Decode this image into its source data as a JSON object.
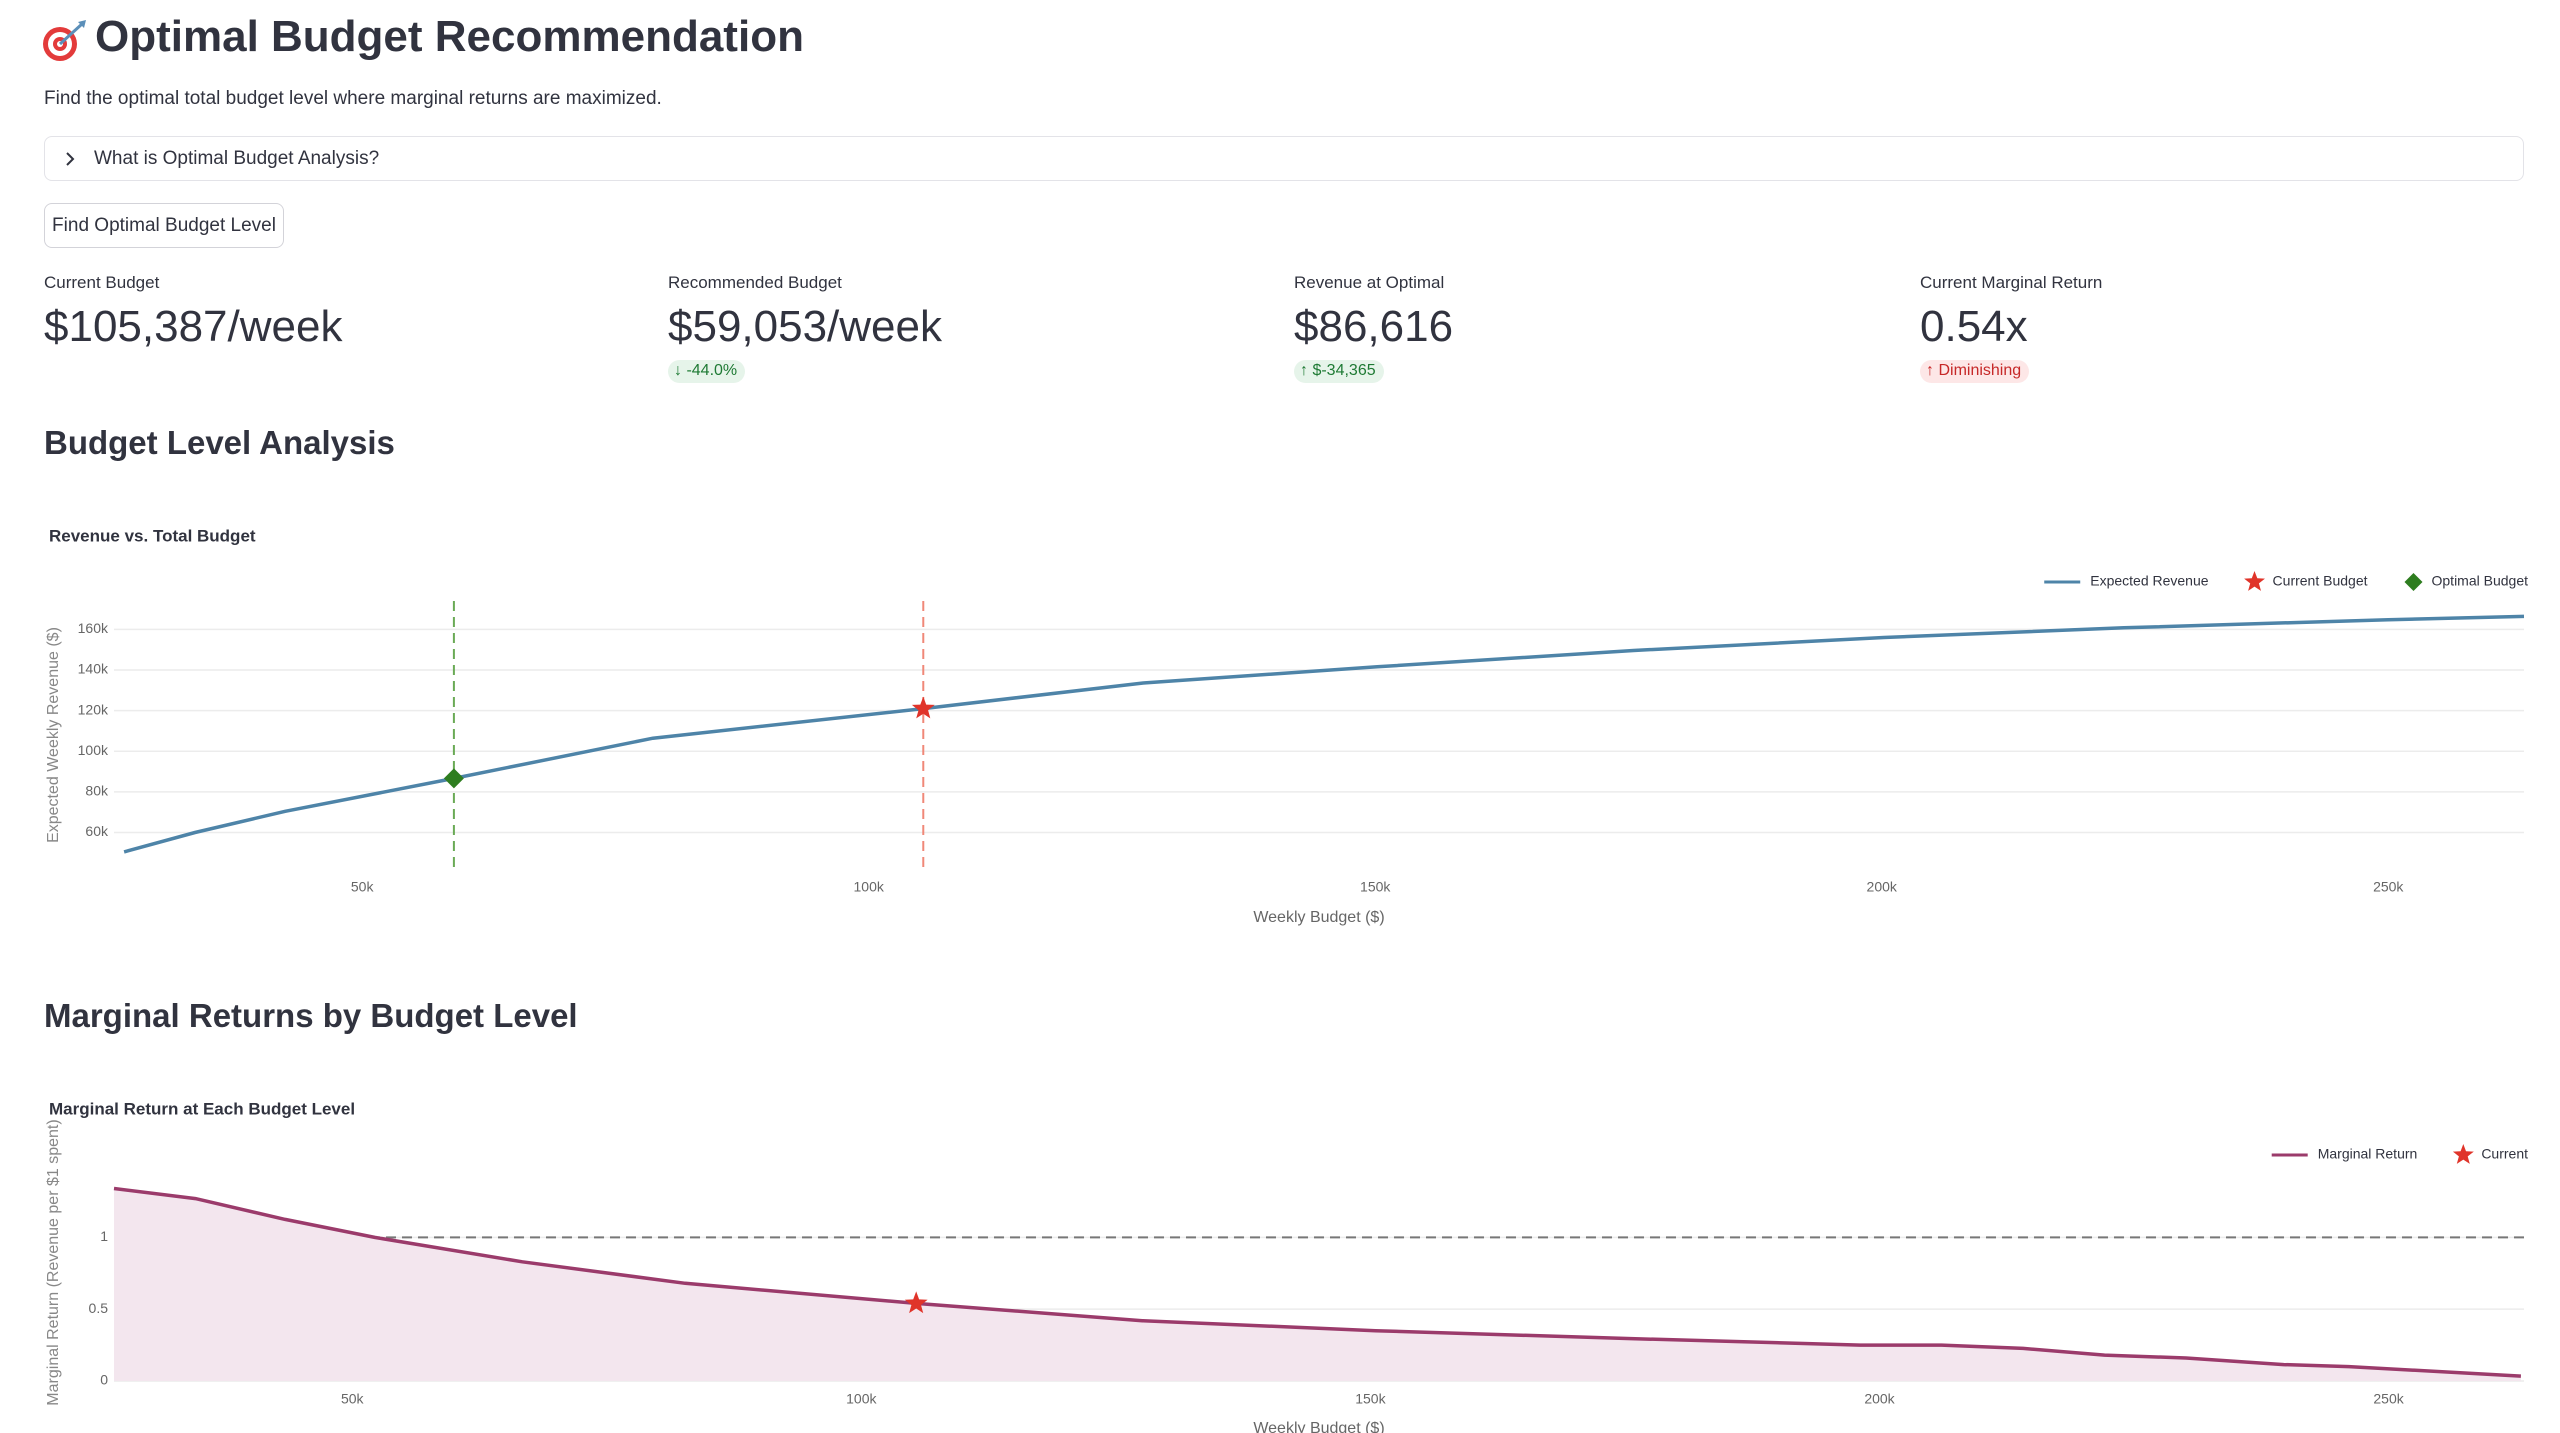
{
  "header": {
    "title": "Optimal Budget Recommendation",
    "subtitle": "Find the optimal total budget level where marginal returns are maximized."
  },
  "expander": {
    "label": "What is Optimal Budget Analysis?"
  },
  "button": {
    "label": "Find Optimal Budget Level"
  },
  "metrics": [
    {
      "label": "Current Budget",
      "value": "$105,387/week"
    },
    {
      "label": "Recommended Budget",
      "value": "$59,053/week",
      "delta": "-44.0%"
    },
    {
      "label": "Revenue at Optimal",
      "value": "$86,616",
      "delta": "$-34,365"
    },
    {
      "label": "Current Marginal Return",
      "value": "0.54x",
      "delta": "Diminishing"
    }
  ],
  "sections": [
    "Budget Level Analysis",
    "Marginal Returns by Budget Level"
  ],
  "chart_data": [
    {
      "type": "line",
      "title": "Revenue vs. Total Budget",
      "x_label": "Weekly Budget ($)",
      "y_label": "Expected Weekly Revenue ($)",
      "xlim": [
        25500,
        263400
      ],
      "ylim": [
        42000,
        174000
      ],
      "xticks": [
        {
          "value": 50000,
          "label": "50k"
        },
        {
          "value": 100000,
          "label": "100k"
        },
        {
          "value": 150000,
          "label": "150k"
        },
        {
          "value": 200000,
          "label": "200k"
        },
        {
          "value": 250000,
          "label": "250k"
        }
      ],
      "yticks": [
        {
          "value": 60000,
          "label": "60k"
        },
        {
          "value": 80000,
          "label": "80k"
        },
        {
          "value": 100000,
          "label": "100k"
        },
        {
          "value": 120000,
          "label": "120k"
        },
        {
          "value": 140000,
          "label": "140k"
        },
        {
          "value": 160000,
          "label": "160k"
        }
      ],
      "grid": true,
      "legend": "top-right",
      "series": [
        {
          "name": "Expected Revenue",
          "color": "#4e84a8",
          "marker": "line",
          "x": [
            26500,
            33500,
            42400,
            59053,
            78700,
            105387,
            127100,
            150200,
            175500,
            200200,
            223900,
            250000,
            263400
          ],
          "values": [
            50400,
            60000,
            70400,
            86616,
            106400,
            120981,
            133600,
            141600,
            149600,
            156000,
            160800,
            164800,
            166400
          ]
        },
        {
          "name": "Current Budget",
          "color": "#e0342a",
          "marker": "star",
          "vline": true,
          "vline_color": "#f08878",
          "x": [
            105387
          ],
          "values": [
            120981
          ]
        },
        {
          "name": "Optimal Budget",
          "color": "#2e7d1f",
          "marker": "diamond",
          "vline": true,
          "vline_color": "#6aaa55",
          "x": [
            59053
          ],
          "values": [
            86616
          ]
        }
      ]
    },
    {
      "type": "line",
      "title": "Marginal Return at Each Budget Level",
      "x_label": "Weekly Budget ($)",
      "y_label": "Marginal Return (Revenue per $1 spent)",
      "xlim": [
        26600,
        263300
      ],
      "ylim": [
        0,
        1.65
      ],
      "xticks": [
        {
          "value": 50000,
          "label": "50k"
        },
        {
          "value": 100000,
          "label": "100k"
        },
        {
          "value": 150000,
          "label": "150k"
        },
        {
          "value": 200000,
          "label": "200k"
        },
        {
          "value": 250000,
          "label": "250k"
        }
      ],
      "yticks": [
        0,
        0.5,
        1
      ],
      "grid": true,
      "legend": "top-right",
      "hline": 1,
      "hline_color": "#777777",
      "series": [
        {
          "name": "Marginal Return",
          "color": "#9b3b6b",
          "marker": "line",
          "area": true,
          "area_color": "#f3e6ee",
          "x": [
            26600,
            34600,
            43400,
            52200,
            66700,
            82700,
            105387,
            127600,
            150500,
            175600,
            198100,
            206100,
            214100,
            222100,
            230100,
            239700,
            246100,
            263000
          ],
          "values": [
            1.34,
            1.27,
            1.125,
            1.0,
            0.83,
            0.68,
            0.54,
            0.42,
            0.35,
            0.295,
            0.25,
            0.25,
            0.227,
            0.18,
            0.16,
            0.114,
            0.1,
            0.034
          ]
        },
        {
          "name": "Current",
          "color": "#e0342a",
          "marker": "star",
          "x": [
            105387
          ],
          "values": [
            0.54
          ]
        }
      ]
    }
  ]
}
